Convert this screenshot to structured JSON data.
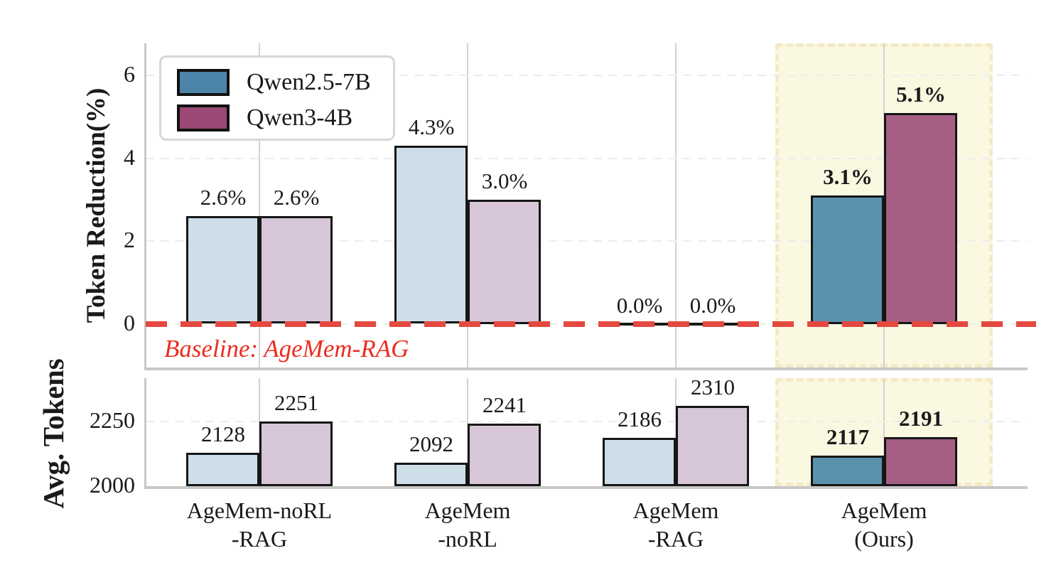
{
  "colors": {
    "bar_edge": "#161616",
    "baseline_red": "#e4493f",
    "baseline_text_red": "#ec2d1f",
    "highlight_fill": "#fbf8e2",
    "highlight_edge": "#f3eac6",
    "spine_gray": "#c8c8c8",
    "text": "#1a1a1a"
  },
  "legend": {
    "items": [
      {
        "label": "Qwen2.5-7B",
        "color": "#4c85a7"
      },
      {
        "label": "Qwen3-4B",
        "color": "#9b4876"
      }
    ]
  },
  "chart_data": [
    {
      "type": "bar",
      "ylabel": "Token Reduction(%)",
      "categories": [
        "AgeMem-noRL\n-RAG",
        "AgeMem\n-noRL",
        "AgeMem\n-RAG",
        "AgeMem\n(Ours)"
      ],
      "series": [
        {
          "name": "Qwen2.5-7B",
          "values": [
            2.6,
            4.3,
            0.0,
            3.1
          ],
          "labels": [
            "2.6%",
            "4.3%",
            "0.0%",
            "3.1%"
          ],
          "color_light": "#cddee9",
          "color_solid": "#5c91ad"
        },
        {
          "name": "Qwen3-4B",
          "values": [
            2.6,
            3.0,
            0.0,
            5.1
          ],
          "labels": [
            "2.6%",
            "3.0%",
            "0.0%",
            "5.1%"
          ],
          "color_light": "#d6c6d8",
          "color_solid": "#a55f84"
        }
      ],
      "yticks": [
        {
          "value": 0,
          "label": "0"
        },
        {
          "value": 2,
          "label": "2"
        },
        {
          "value": 4,
          "label": "4"
        },
        {
          "value": 6,
          "label": "6"
        }
      ],
      "ylim": [
        -1.05,
        6.78
      ],
      "grid": true,
      "legend_position": "upper left",
      "baseline": {
        "value": 0,
        "label": "Baseline: AgeMem-RAG"
      },
      "highlight_category": 3
    },
    {
      "type": "bar",
      "ylabel": "Avg. Tokens",
      "categories": [
        "AgeMem-noRL\n-RAG",
        "AgeMem\n-noRL",
        "AgeMem\n-RAG",
        "AgeMem\n(Ours)"
      ],
      "series": [
        {
          "name": "Qwen2.5-7B",
          "values": [
            2128,
            2092,
            2186,
            2117
          ],
          "labels": [
            "2128",
            "2092",
            "2186",
            "2117"
          ],
          "color_light": "#cddee9",
          "color_solid": "#5c91ad"
        },
        {
          "name": "Qwen3-4B",
          "values": [
            2251,
            2241,
            2310,
            2191
          ],
          "labels": [
            "2251",
            "2241",
            "2310",
            "2191"
          ],
          "color_light": "#d6c6d8",
          "color_solid": "#a55f84"
        }
      ],
      "yticks": [
        {
          "value": 2000,
          "label": "2000"
        },
        {
          "value": 2250,
          "label": "2250"
        }
      ],
      "ylim": [
        2000,
        2418
      ],
      "grid": true,
      "highlight_category": 3
    }
  ]
}
